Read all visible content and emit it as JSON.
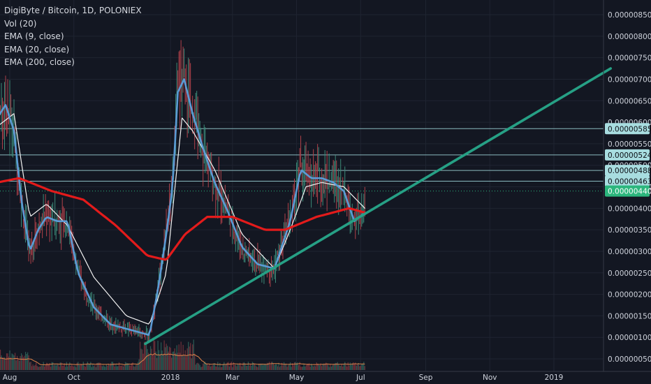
{
  "legend": {
    "symbol": "DigiByte / Bitcoin, 1D, POLONIEX",
    "vol": "Vol (20)",
    "ema9": "EMA (9, close)",
    "ema20": "EMA (20, close)",
    "ema200": "EMA (200, close)"
  },
  "colors": {
    "background": "#131722",
    "axis_text": "#cfd3dc",
    "ema9": "#5b9bd5",
    "ema20": "#f2f2f2",
    "ema200": "#e31b1b",
    "trendline": "#26a085",
    "hline": "#9fd8dc",
    "hline_box": "#a8dde0",
    "current_box": "#2cb67d",
    "volume_line": "#e0834a",
    "candle_up": "#3c8a78",
    "candle_down": "#b0414a"
  },
  "chart_data": {
    "type": "line",
    "title": "DigiByte / Bitcoin, 1D, POLONIEX",
    "x_ticks": [
      "Aug",
      "Oct",
      "2018",
      "Mar",
      "May",
      "Jul",
      "Sep",
      "Nov",
      "2019"
    ],
    "y_ticks": [
      "0.00000850",
      "0.00000800",
      "0.00000750",
      "0.00000700",
      "0.00000650",
      "0.00000600",
      "0.00000550",
      "0.00000500",
      "0.00000450",
      "0.00000400",
      "0.00000350",
      "0.00000300",
      "0.00000250",
      "0.00000200",
      "0.00000150",
      "0.00000100",
      "0.00000050"
    ],
    "ylim": [
      3e-07,
      8.7e-06
    ],
    "horizontal_levels": [
      {
        "label": "0.00000585",
        "value": 5.85e-06
      },
      {
        "label": "0.00000524",
        "value": 5.24e-06
      },
      {
        "label": "0.00000488",
        "value": 4.88e-06
      },
      {
        "label": "0.00000463",
        "value": 4.63e-06
      }
    ],
    "current_price": {
      "label": "0.00000440",
      "value": 4.4e-06
    },
    "trendline": {
      "start": [
        "2017-12-08",
        8.5e-07
      ],
      "end": [
        "2019-02-24",
        7.25e-06
      ]
    },
    "series": [
      {
        "name": "EMA (9, close)",
        "x": [
          "2017-07-20",
          "2017-07-28",
          "2017-08-05",
          "2017-08-12",
          "2017-08-20",
          "2017-08-28",
          "2017-09-05",
          "2017-09-15",
          "2017-09-25",
          "2017-10-05",
          "2017-10-20",
          "2017-11-05",
          "2017-11-20",
          "2017-12-05",
          "2017-12-12",
          "2017-12-20",
          "2017-12-28",
          "2018-01-03",
          "2018-01-08",
          "2018-01-14",
          "2018-01-22",
          "2018-02-01",
          "2018-02-12",
          "2018-02-25",
          "2018-03-10",
          "2018-03-25",
          "2018-04-10",
          "2018-04-25",
          "2018-05-05",
          "2018-05-15",
          "2018-05-25",
          "2018-06-05",
          "2018-06-15",
          "2018-06-25",
          "2018-07-05"
        ],
        "values": [
          6.1e-06,
          6.4e-06,
          5.8e-06,
          4.2e-06,
          3e-06,
          3.5e-06,
          3.8e-06,
          3.7e-06,
          3.7e-06,
          2.5e-06,
          1.7e-06,
          1.3e-06,
          1.2e-06,
          1.1e-06,
          1.05e-06,
          2.1e-06,
          3.4e-06,
          4.5e-06,
          6.7e-06,
          7e-06,
          6.2e-06,
          5.4e-06,
          4.6e-06,
          3.9e-06,
          3.1e-06,
          2.7e-06,
          2.6e-06,
          3.7e-06,
          4.9e-06,
          4.7e-06,
          4.7e-06,
          4.6e-06,
          4.4e-06,
          3.7e-06,
          3.9e-06
        ]
      },
      {
        "name": "EMA (20, close)",
        "x": [
          "2017-07-20",
          "2017-08-05",
          "2017-08-20",
          "2017-09-05",
          "2017-09-25",
          "2017-10-20",
          "2017-11-20",
          "2017-12-12",
          "2017-12-28",
          "2018-01-12",
          "2018-01-22",
          "2018-02-12",
          "2018-03-10",
          "2018-04-10",
          "2018-04-25",
          "2018-05-10",
          "2018-05-25",
          "2018-06-15",
          "2018-07-05"
        ],
        "values": [
          5.9e-06,
          6.2e-06,
          3.8e-06,
          4.1e-06,
          3.6e-06,
          2.4e-06,
          1.5e-06,
          1.3e-06,
          2.5e-06,
          6.1e-06,
          5.8e-06,
          4.9e-06,
          3.4e-06,
          2.6e-06,
          3.5e-06,
          4.5e-06,
          4.6e-06,
          4.5e-06,
          4e-06
        ]
      },
      {
        "name": "EMA (200, close)",
        "x": [
          "2017-07-20",
          "2017-08-10",
          "2017-09-10",
          "2017-10-10",
          "2017-11-10",
          "2017-12-10",
          "2017-12-28",
          "2018-01-15",
          "2018-02-05",
          "2018-03-01",
          "2018-04-01",
          "2018-04-20",
          "2018-05-20",
          "2018-06-20",
          "2018-07-05"
        ],
        "values": [
          4.6e-06,
          4.7e-06,
          4.4e-06,
          4.2e-06,
          3.6e-06,
          2.9e-06,
          2.8e-06,
          3.4e-06,
          3.8e-06,
          3.8e-06,
          3.5e-06,
          3.5e-06,
          3.8e-06,
          4e-06,
          3.9e-06
        ]
      }
    ]
  }
}
